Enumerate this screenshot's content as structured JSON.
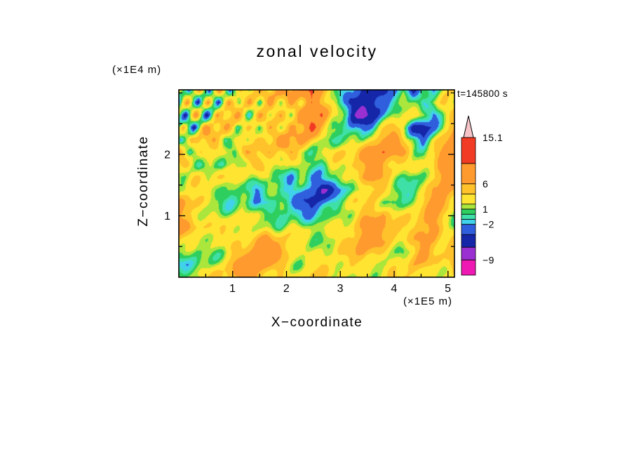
{
  "chart_data": {
    "type": "heatmap",
    "title": "zonal velocity",
    "xlabel": "X−coordinate",
    "ylabel": "Z−coordinate",
    "x_unit": "(×1E5 m)",
    "y_unit": "(×1E4 m)",
    "time_annotation": "t=145800 s",
    "x_range": [
      0,
      5.12
    ],
    "y_range": [
      0,
      3.05
    ],
    "x_ticks": [
      1,
      2,
      3,
      4,
      5
    ],
    "y_ticks": [
      1,
      2
    ],
    "minor_tick_step": 0.5,
    "grid": "off",
    "legend_position": "colorbar-right",
    "colorbar": {
      "min": -12,
      "max": 15.1,
      "boundaries": [
        -12,
        -9,
        -6.5,
        -4,
        -2,
        -1,
        0,
        1,
        2,
        4,
        6,
        10,
        15.1
      ],
      "colors": [
        "#ee18b2",
        "#9a2fd2",
        "#1526a8",
        "#2f5fdd",
        "#40d2ea",
        "#3fe0a8",
        "#2ecf5f",
        "#aae63c",
        "#ffe431",
        "#ffc22b",
        "#ff9a2e",
        "#f23b24"
      ],
      "over_color": "#f6c4c8",
      "labels": [
        {
          "text": "15.1",
          "value": 15.1
        },
        {
          "text": "6",
          "value": 6
        },
        {
          "text": "1",
          "value": 1
        },
        {
          "text": "−2",
          "value": -2
        },
        {
          "text": "−9",
          "value": -9
        }
      ]
    },
    "field": {
      "nx": 28,
      "nz": 16,
      "order": "rows_top_to_bottom",
      "units": "m/s (approx, estimated from colors)",
      "values": [
        [
          3,
          -5,
          8,
          -6,
          9,
          -3,
          7,
          2,
          7,
          3,
          8,
          4,
          9,
          12,
          7,
          2,
          -1.5,
          0.5,
          -6,
          -6,
          -5,
          -2,
          0.5,
          -5,
          2,
          -3,
          0.5,
          3
        ],
        [
          -6,
          7,
          -6,
          9,
          -5,
          7,
          1.5,
          7,
          -2,
          7,
          2,
          8,
          3,
          11,
          7,
          1.5,
          -2,
          -6,
          -6,
          -6,
          -3,
          0.5,
          2,
          0.5,
          -1.5,
          2,
          4,
          2
        ],
        [
          8,
          -6,
          9,
          -5,
          8,
          2,
          7,
          -1.5,
          7,
          1.5,
          7,
          2,
          9,
          7,
          10,
          3,
          0.5,
          -5,
          -6,
          -5,
          -2,
          1.5,
          3,
          2,
          0.5,
          -3,
          2,
          5
        ],
        [
          -5,
          8,
          -6,
          7,
          2,
          7,
          -2,
          5,
          2,
          7,
          1.5,
          8,
          4,
          11,
          5,
          2,
          0.5,
          -2,
          -3,
          -1.5,
          2,
          4,
          2,
          -5,
          -6,
          -2,
          3,
          7
        ],
        [
          7,
          -3,
          7,
          1.5,
          7,
          0.5,
          5,
          1.5,
          7,
          2,
          8,
          3,
          9,
          4,
          2,
          0.5,
          2,
          1.5,
          0.5,
          3,
          7,
          8,
          5,
          1.5,
          -3,
          1.5,
          5,
          8
        ],
        [
          2,
          7,
          -2,
          5,
          1.5,
          4,
          0.5,
          7,
          1.5,
          7,
          2,
          7,
          3,
          2,
          1.5,
          3,
          4,
          2,
          5,
          8,
          11,
          9,
          7,
          2,
          0.5,
          3,
          7,
          9
        ],
        [
          4,
          1.5,
          5,
          0.5,
          4,
          -1.5,
          3,
          0.5,
          5,
          1.5,
          4,
          1.5,
          2,
          0.5,
          -0.5,
          1.5,
          2,
          5,
          7,
          9,
          7,
          4,
          2,
          1.5,
          2,
          4,
          8,
          10
        ],
        [
          7,
          3,
          1.5,
          4,
          2,
          3,
          1.5,
          4,
          2,
          3,
          0.5,
          -2,
          0.5,
          -3,
          -2,
          0.5,
          1.5,
          3,
          7,
          7,
          5,
          2,
          0.5,
          -0.5,
          1.5,
          5,
          9,
          7
        ],
        [
          3,
          5,
          2,
          3,
          1.5,
          2,
          0.5,
          1.5,
          -1.5,
          0.5,
          -1.5,
          -2,
          -1.5,
          -3,
          -6,
          -3,
          -1.5,
          0.5,
          2,
          4,
          3,
          1.5,
          -0.5,
          0.5,
          2,
          7,
          8,
          5
        ],
        [
          1.5,
          4,
          7,
          4,
          2,
          1.5,
          -0.5,
          0.5,
          -2,
          -1.5,
          0.5,
          -1.5,
          -2,
          -5,
          -3,
          -1.5,
          0.5,
          1.5,
          3,
          5,
          2,
          0.5,
          1.5,
          2,
          4,
          7,
          7,
          3
        ],
        [
          2,
          5,
          7,
          5,
          3,
          2,
          1.5,
          2,
          0.5,
          1.5,
          -0.5,
          0.5,
          -1.5,
          -2,
          -1.5,
          0.5,
          1.5,
          2,
          5,
          7,
          7,
          3,
          2,
          3,
          5,
          8,
          4,
          2
        ],
        [
          4,
          7,
          8,
          7,
          4,
          3,
          2,
          3,
          2,
          3,
          1.5,
          2,
          1.5,
          0.5,
          1.5,
          2,
          3,
          4,
          7,
          8,
          7,
          5,
          3,
          4,
          7,
          9,
          3,
          1.5
        ],
        [
          2,
          5,
          7,
          3,
          1.5,
          2,
          3,
          4,
          5,
          7,
          4,
          3,
          2,
          1.5,
          2,
          3,
          4,
          5,
          8,
          7,
          5,
          4,
          3,
          5,
          8,
          7,
          2,
          3
        ],
        [
          0.5,
          2,
          3,
          0.5,
          -0.5,
          1.5,
          2,
          5,
          7,
          8,
          7,
          4,
          3,
          2,
          3,
          2,
          3,
          4,
          7,
          5,
          4,
          3,
          2,
          4,
          7,
          4,
          3,
          5
        ],
        [
          -2,
          0.5,
          1.5,
          -1.5,
          0.5,
          2,
          3,
          7,
          8,
          7,
          5,
          3,
          2,
          3,
          4,
          3,
          2,
          3,
          4,
          3,
          2,
          2,
          3,
          5,
          4,
          3,
          4,
          7
        ],
        [
          1.5,
          -0.5,
          0.5,
          1.5,
          2,
          3,
          4,
          5,
          7,
          5,
          4,
          3,
          3,
          4,
          3,
          2,
          3,
          2,
          3,
          2,
          3,
          4,
          3,
          4,
          3,
          2,
          3,
          4
        ]
      ]
    }
  }
}
